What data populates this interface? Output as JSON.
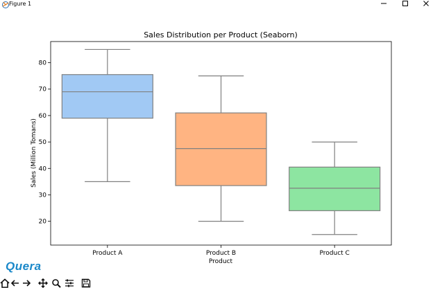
{
  "window": {
    "title": "Figure 1",
    "icons": [
      "matplotlib-icon",
      "minimize-icon",
      "maximize-icon",
      "close-icon"
    ]
  },
  "watermark": {
    "text": "Quera",
    "color": "#1a88c9"
  },
  "toolbar": {
    "icons": [
      "home-icon",
      "back-icon",
      "forward-icon",
      "pan-icon",
      "zoom-icon",
      "configure-subplots-icon",
      "save-icon"
    ]
  },
  "chart_data": {
    "type": "boxplot",
    "title": "Sales Distribution per Product (Seaborn)",
    "xlabel": "Product",
    "ylabel": "Sales (Million Tomans)",
    "ylim": [
      11,
      88
    ],
    "yticks": [
      20,
      30,
      40,
      50,
      60,
      70,
      80
    ],
    "categories": [
      "Product A",
      "Product B",
      "Product C"
    ],
    "boxes": [
      {
        "name": "Product A",
        "whisker_low": 35,
        "q1": 59,
        "median": 69,
        "q3": 75.5,
        "whisker_high": 85,
        "color": "#a1c9f4"
      },
      {
        "name": "Product B",
        "whisker_low": 20,
        "q1": 33.5,
        "median": 47.5,
        "q3": 61,
        "whisker_high": 75,
        "color": "#ffb482"
      },
      {
        "name": "Product C",
        "whisker_low": 15,
        "q1": 24,
        "median": 32.5,
        "q3": 40.5,
        "whisker_high": 50,
        "color": "#8de5a1"
      }
    ],
    "line_color": "#808080",
    "grid": false
  }
}
